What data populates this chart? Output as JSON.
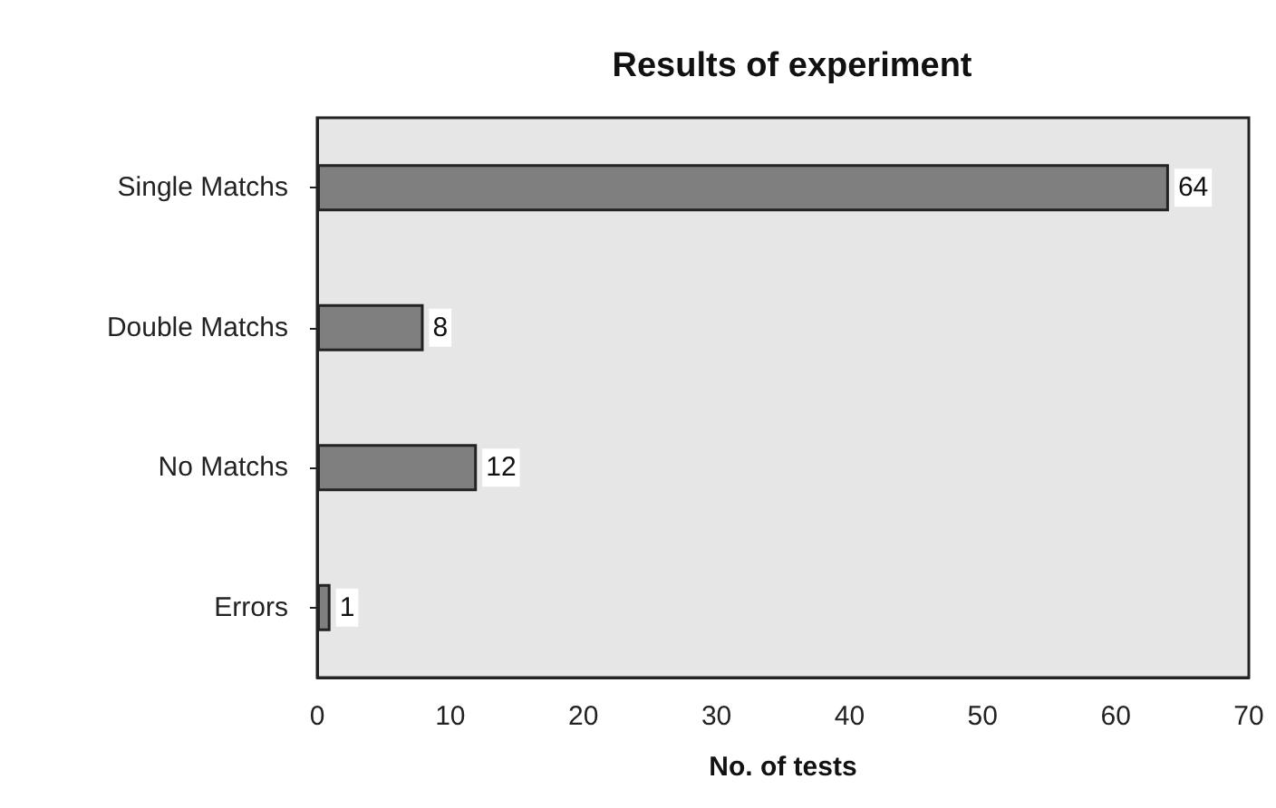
{
  "chart_data": {
    "type": "bar",
    "orientation": "horizontal",
    "title": "Results of experiment",
    "xlabel": "No. of tests",
    "categories": [
      "Single Matchs",
      "Double Matchs",
      "No Matchs",
      "Errors"
    ],
    "values": [
      64,
      8,
      12,
      1
    ],
    "color": "#7f7f7f",
    "data_labels": true,
    "xlim": [
      0,
      70
    ],
    "xticks": [
      0,
      10,
      20,
      30,
      40,
      50,
      60,
      70
    ],
    "grid": false
  }
}
